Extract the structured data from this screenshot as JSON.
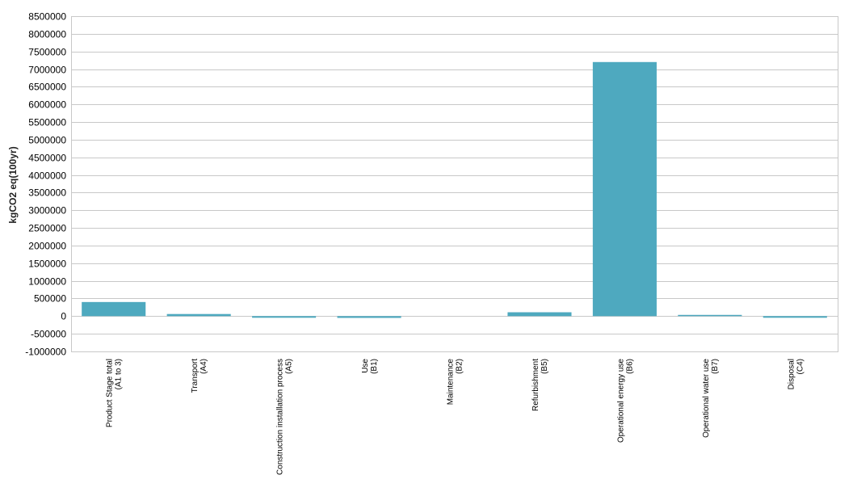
{
  "chart_data": {
    "type": "bar",
    "title": "",
    "xlabel": "",
    "ylabel": "kgCO2 eq(100yr)",
    "ylim": [
      -1000000,
      8500000
    ],
    "ytick_step": 500000,
    "yticks": [
      "8500000",
      "8000000",
      "7500000",
      "7000000",
      "6500000",
      "6000000",
      "5500000",
      "5000000",
      "4500000",
      "4000000",
      "3500000",
      "3000000",
      "2500000",
      "2000000",
      "1500000",
      "1000000",
      "500000",
      "0",
      "-500000",
      "-1000000"
    ],
    "grid": true,
    "legend": "none",
    "bar_color": "#4ea9bf",
    "categories": [
      {
        "line1": "Product Stage total",
        "line2": "(A1 to 3)"
      },
      {
        "line1": "Transport",
        "line2": "(A4)"
      },
      {
        "line1": "Construction installation process",
        "line2": "(A5)"
      },
      {
        "line1": "Use",
        "line2": "(B1)"
      },
      {
        "line1": "Maintenance",
        "line2": "(B2)"
      },
      {
        "line1": "Refurbishment",
        "line2": "(B5)"
      },
      {
        "line1": "Operational energy use",
        "line2": "(B6)"
      },
      {
        "line1": "Operational water use",
        "line2": "(B7)"
      },
      {
        "line1": "Disposal",
        "line2": "(C4)"
      }
    ],
    "values": [
      400000,
      60000,
      -20000,
      -50000,
      0,
      110000,
      7200000,
      35000,
      -15000
    ]
  }
}
